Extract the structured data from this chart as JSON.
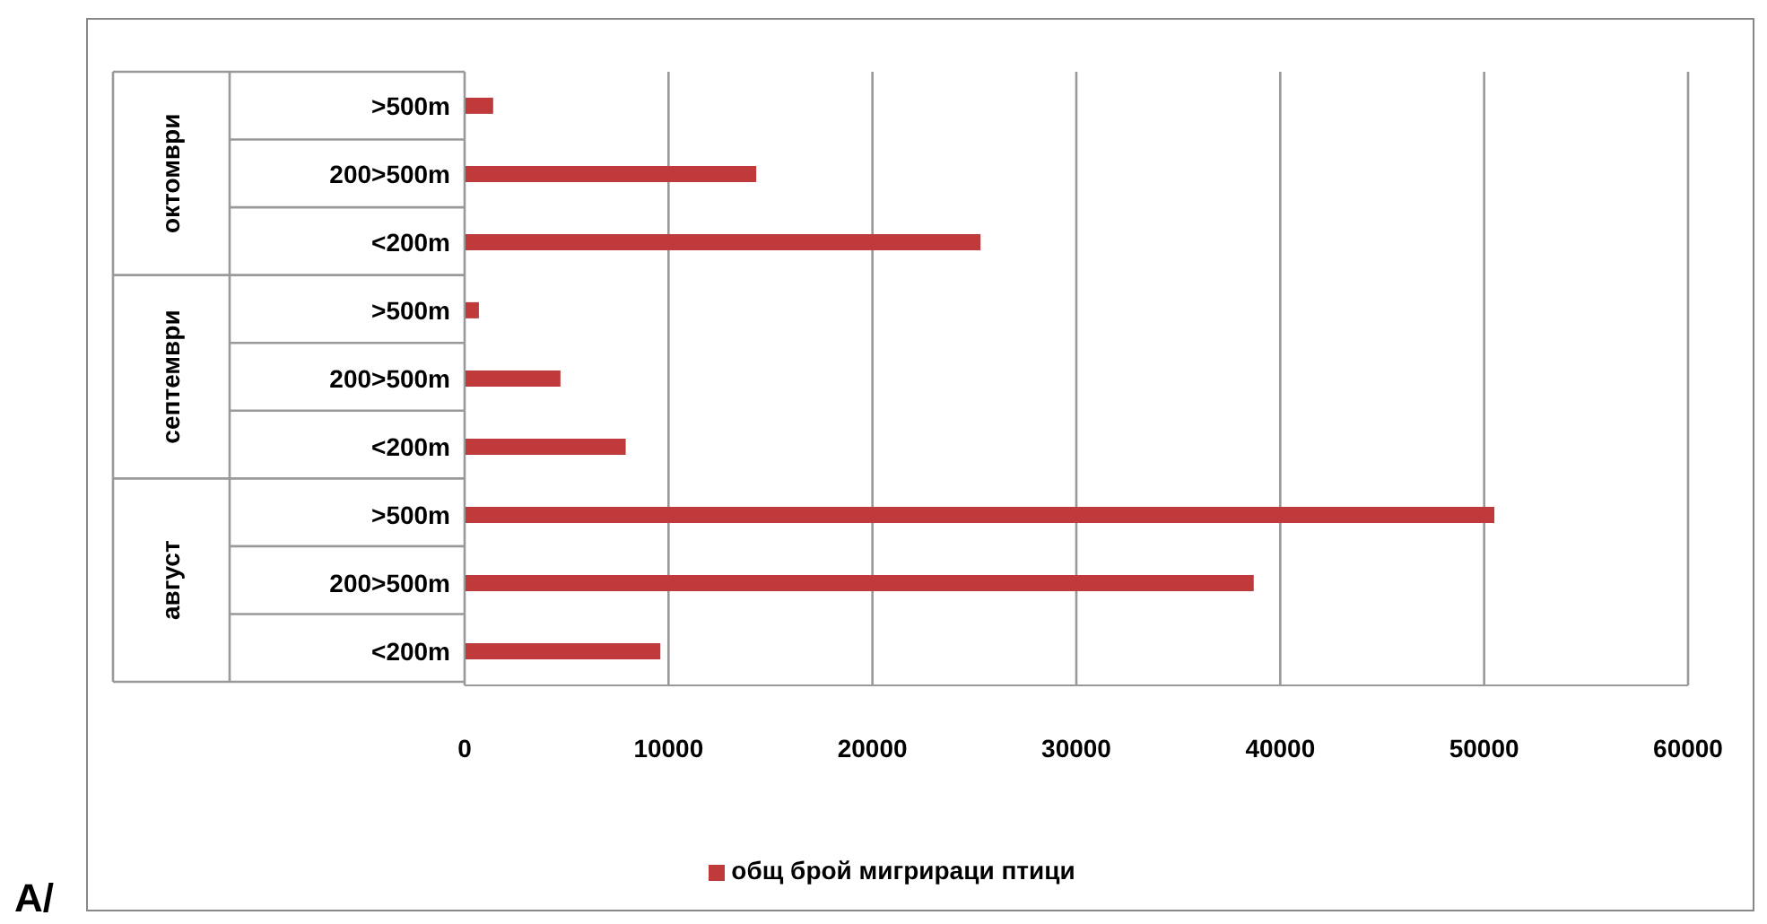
{
  "chart_data": {
    "type": "bar",
    "orientation": "horizontal",
    "categories": [
      ">500m",
      "200>500m",
      "<200m",
      ">500m",
      "200>500m",
      "<200m",
      ">500m",
      "200>500m",
      "<200m"
    ],
    "series": [
      {
        "name": "общ брой мигрираци птици",
        "color": "#c0393b",
        "values": [
          1400,
          14300,
          25300,
          700,
          4700,
          7900,
          50500,
          38700,
          9600
        ]
      }
    ],
    "xlim": [
      0,
      60000
    ],
    "xticks": [
      0,
      10000,
      20000,
      30000,
      40000,
      50000,
      60000
    ],
    "grid": "x",
    "legend": "bottom",
    "annotations": [
      "октомври",
      "септември",
      "август",
      "A/"
    ]
  }
}
